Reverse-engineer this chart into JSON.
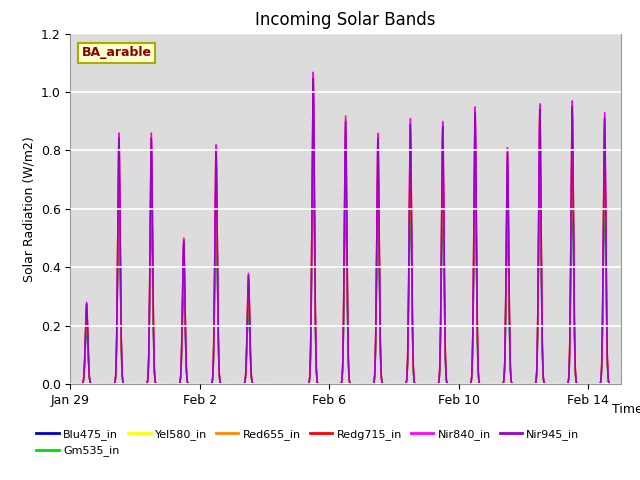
{
  "title": "Incoming Solar Bands",
  "xlabel": "Time",
  "ylabel": "Solar Radiation (W/m2)",
  "ylim": [
    0,
    1.2
  ],
  "xlim": [
    0,
    17
  ],
  "annotation_text": "BA_arable",
  "annotation_color": "#8B0000",
  "annotation_bg": "#FFFFCC",
  "annotation_border": "#AAAA00",
  "plot_bg": "#DCDCDC",
  "grid_color": "white",
  "series": [
    {
      "name": "Blu475_in",
      "color": "#0000CC",
      "lw": 1.0,
      "scale": 0.7
    },
    {
      "name": "Gm535_in",
      "color": "#00DD00",
      "lw": 1.0,
      "scale": 0.72
    },
    {
      "name": "Yel580_in",
      "color": "#FFFF00",
      "lw": 1.0,
      "scale": 1.0
    },
    {
      "name": "Red655_in",
      "color": "#FF8800",
      "lw": 1.0,
      "scale": 0.95
    },
    {
      "name": "Redg715_in",
      "color": "#FF0000",
      "lw": 1.0,
      "scale": 0.85
    },
    {
      "name": "Nir840_in",
      "color": "#FF00FF",
      "lw": 1.0,
      "scale": 1.0
    },
    {
      "name": "Nir945_in",
      "color": "#9900CC",
      "lw": 1.0,
      "scale": 0.98
    }
  ],
  "xtick_labels": [
    "Jan 29",
    "Feb 2",
    "Feb 6",
    "Feb 10",
    "Feb 14"
  ],
  "xtick_positions": [
    0,
    4,
    8,
    12,
    16
  ],
  "day_amps": [
    0.28,
    0.86,
    0.86,
    0.5,
    0.82,
    0.38,
    0.0,
    1.07,
    0.92,
    0.86,
    0.91,
    0.9,
    0.95,
    0.81,
    0.96,
    0.97,
    0.93,
    0.0
  ],
  "spike_sigma": 0.04,
  "n_days": 17,
  "pts_per_day": 200,
  "title_fontsize": 12,
  "label_fontsize": 9,
  "legend_fontsize": 8
}
